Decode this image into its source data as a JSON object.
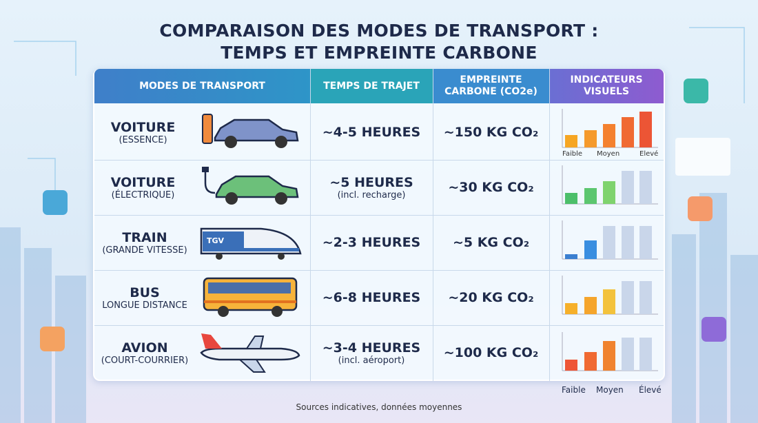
{
  "header": {
    "title_line1": "COMPARAISON DES MODES DE TRANSPORT :",
    "title_line2": "TEMPS ET EMPREINTE CARBONE"
  },
  "table": {
    "columns": [
      "MODES DE TRANSPORT",
      "TEMPS DE TRAJET",
      "EMPREINTE CARBONE (CO2e)",
      "INDICATEURS VISUELS"
    ],
    "rows": [
      {
        "mode": "VOITURE",
        "detail": "(ESSENCE)",
        "time": "~4-5 HEURES",
        "carbon": "~150 KG CO₂"
      },
      {
        "mode": "VOITURE",
        "detail": "(ÉLECTRIQUE)",
        "time": "~5 HEURES",
        "time_note": "(incl. recharge)",
        "carbon": "~30 KG CO₂"
      },
      {
        "mode": "TRAIN",
        "detail": "(GRANDE VITESSE)",
        "icon_label": "TGV",
        "time": "~2-3 HEURES",
        "carbon": "~5 KG CO₂"
      },
      {
        "mode": "BUS",
        "detail": "LONGUE DISTANCE",
        "time": "~6-8 HEURES",
        "carbon": "~20 KG CO₂"
      },
      {
        "mode": "AVION",
        "detail": "(COURT-COURRIER)",
        "time": "~3-4 HEURES",
        "time_note": "(incl. aéroport)",
        "carbon": "~100 KG CO₂"
      }
    ]
  },
  "scale_labels_top": [
    "Faible",
    "Moyen",
    "Elevé"
  ],
  "scale_labels_bottom": [
    "Faible",
    "Moyen",
    "Élevé"
  ],
  "footer": "Sources indicatives, données moyennes"
}
